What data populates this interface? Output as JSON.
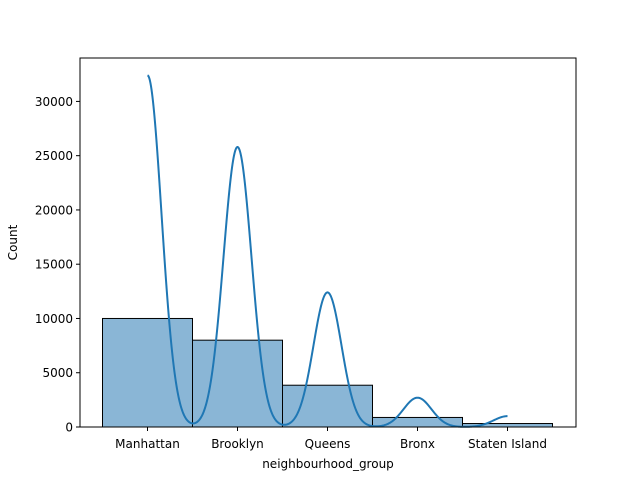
{
  "chart_data": {
    "type": "bar",
    "subtype": "histogram-with-kde",
    "title": "",
    "xlabel": "neighbourhood_group",
    "ylabel": "Count",
    "categories": [
      "Manhattan",
      "Brooklyn",
      "Queens",
      "Bronx",
      "Staten Island"
    ],
    "values": [
      10000,
      8000,
      3850,
      880,
      320
    ],
    "ylim": [
      0,
      34000
    ],
    "yticks": [
      0,
      5000,
      10000,
      15000,
      20000,
      25000,
      30000
    ],
    "ytick_labels": [
      "0",
      "5000",
      "10000",
      "15000",
      "20000",
      "25000",
      "30000"
    ],
    "kde_peaks": [
      32400,
      25800,
      12400,
      2700,
      1000
    ],
    "grid": false,
    "legend": "none",
    "colors": {
      "bar_fill": "#8ab6d6",
      "bar_edge": "#000000",
      "kde_line": "#1f77b4"
    }
  }
}
